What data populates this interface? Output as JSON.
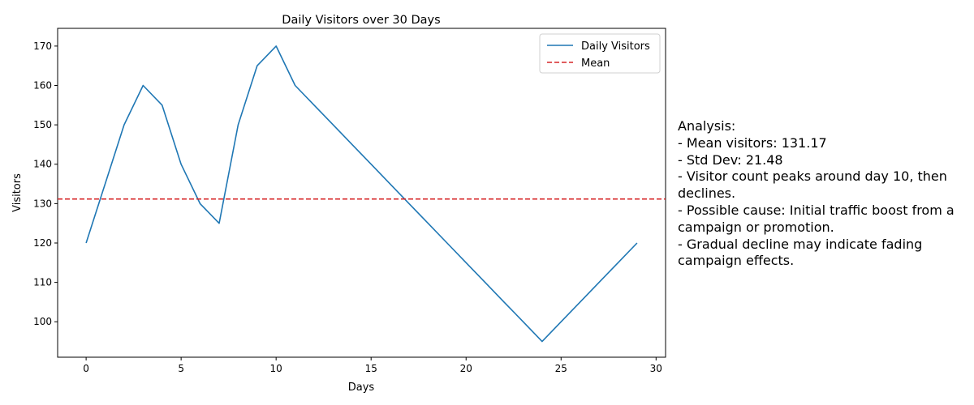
{
  "chart_data": {
    "type": "line",
    "title": "Daily Visitors over 30 Days",
    "xlabel": "Days",
    "ylabel": "Visitors",
    "xlim": [
      -1.5,
      30.5
    ],
    "ylim": [
      91,
      174.5
    ],
    "xticks": [
      0,
      5,
      10,
      15,
      20,
      25,
      30
    ],
    "yticks": [
      100,
      110,
      120,
      130,
      140,
      150,
      160,
      170
    ],
    "grid": false,
    "legend_position": "top-right",
    "series": [
      {
        "name": "Daily Visitors",
        "color": "#1f77b4",
        "style": "solid",
        "x": [
          0,
          1,
          2,
          3,
          4,
          5,
          6,
          7,
          8,
          9,
          10,
          11,
          12,
          13,
          14,
          15,
          16,
          17,
          18,
          19,
          20,
          21,
          22,
          23,
          24,
          25,
          26,
          27,
          28,
          29
        ],
        "values": [
          120,
          135,
          150,
          160,
          155,
          140,
          130,
          125,
          150,
          165,
          170,
          160,
          155,
          150,
          145,
          140,
          135,
          130,
          125,
          120,
          115,
          110,
          105,
          100,
          95,
          100,
          105,
          110,
          115,
          120
        ]
      },
      {
        "name": "Mean",
        "color": "#d62728",
        "style": "dashed",
        "hline": 131.17
      }
    ]
  },
  "analysis": {
    "lines": [
      "Analysis:",
      "- Mean visitors: 131.17",
      "- Std Dev: 21.48",
      "- Visitor count peaks around day 10, then declines.",
      "- Possible cause: Initial traffic boost from a campaign or promotion.",
      "- Gradual decline may indicate fading campaign effects."
    ]
  }
}
